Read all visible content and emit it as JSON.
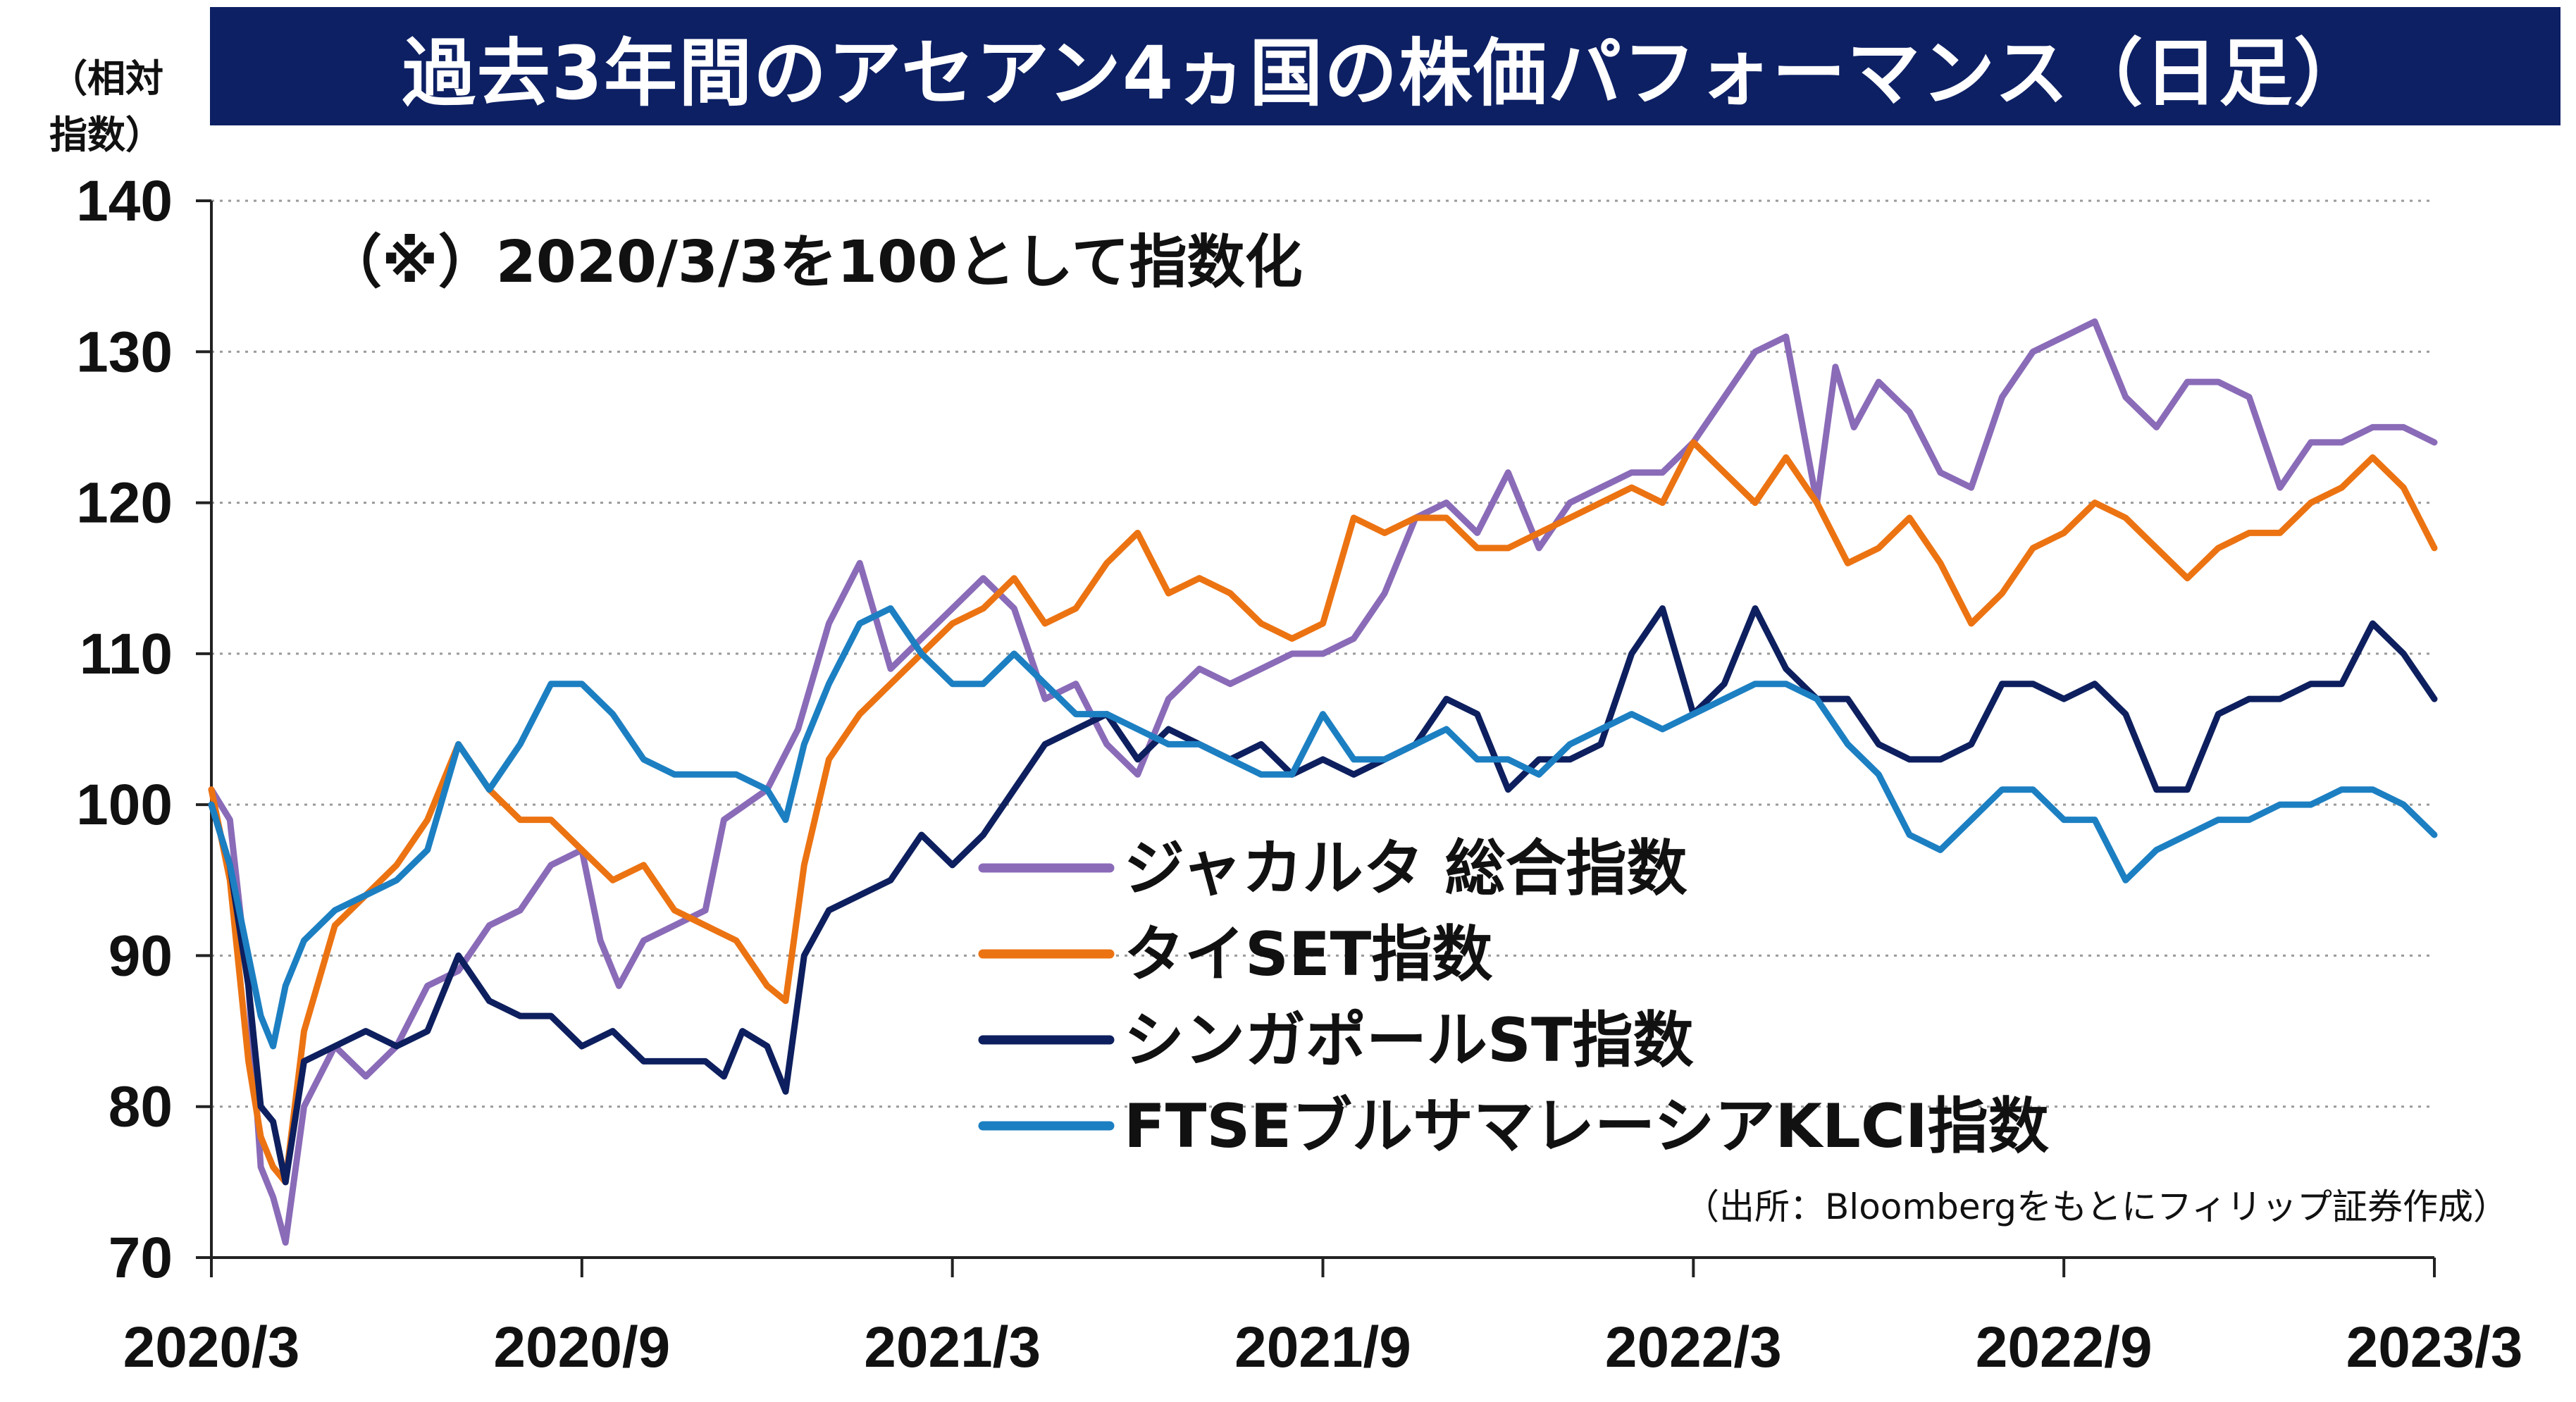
{
  "title": "過去3年間のアセアン4ヵ国の株価パフォーマンス（日足）",
  "unit_label": "（相対指数）",
  "note": "（※）2020/3/3を100として指数化",
  "source": "（出所：Bloombergをもとにフィリップ証券作成）",
  "colors": {
    "title_bg": "#0d2064",
    "jakarta": "#8a6bb8",
    "thai": "#ec7312",
    "singapore": "#0d1f5e",
    "malaysia": "#1c7fc2",
    "grid": "#9a9a9a"
  },
  "chart_data": {
    "type": "line",
    "title": "過去3年間のアセアン4ヵ国の株価パフォーマンス（日足）",
    "ylabel": "（相対指数）",
    "xlabel": "",
    "ylim": [
      70,
      140
    ],
    "yticks": [
      "140",
      "130",
      "120",
      "110",
      "100",
      "90",
      "80",
      "70"
    ],
    "xticks": [
      "2020/3",
      "2020/9",
      "2021/3",
      "2021/9",
      "2022/3",
      "2022/9",
      "2023/3"
    ],
    "grid": "horizontal dotted",
    "legend_placement": "center-right",
    "x_format": "months from 2020/3",
    "series": [
      {
        "name": "ジャカルタ 総合指数",
        "color": "#8a6bb8",
        "points": [
          [
            0,
            101
          ],
          [
            0.3,
            99
          ],
          [
            0.6,
            88
          ],
          [
            0.8,
            76
          ],
          [
            1.0,
            74
          ],
          [
            1.2,
            71
          ],
          [
            1.5,
            80
          ],
          [
            2.0,
            84
          ],
          [
            2.5,
            82
          ],
          [
            3.0,
            84
          ],
          [
            3.5,
            88
          ],
          [
            4.0,
            89
          ],
          [
            4.5,
            92
          ],
          [
            5.0,
            93
          ],
          [
            5.5,
            96
          ],
          [
            6.0,
            97
          ],
          [
            6.3,
            91
          ],
          [
            6.6,
            88
          ],
          [
            7.0,
            91
          ],
          [
            7.5,
            92
          ],
          [
            8.0,
            93
          ],
          [
            8.3,
            99
          ],
          [
            9.0,
            101
          ],
          [
            9.5,
            105
          ],
          [
            10.0,
            112
          ],
          [
            10.5,
            116
          ],
          [
            11.0,
            109
          ],
          [
            11.5,
            111
          ],
          [
            12.0,
            113
          ],
          [
            12.5,
            115
          ],
          [
            13.0,
            113
          ],
          [
            13.5,
            107
          ],
          [
            14.0,
            108
          ],
          [
            14.5,
            104
          ],
          [
            15.0,
            102
          ],
          [
            15.5,
            107
          ],
          [
            16.0,
            109
          ],
          [
            16.5,
            108
          ],
          [
            17.0,
            109
          ],
          [
            17.5,
            110
          ],
          [
            18.0,
            110
          ],
          [
            18.5,
            111
          ],
          [
            19.0,
            114
          ],
          [
            19.5,
            119
          ],
          [
            20.0,
            120
          ],
          [
            20.5,
            118
          ],
          [
            21.0,
            122
          ],
          [
            21.5,
            117
          ],
          [
            22.0,
            120
          ],
          [
            22.5,
            121
          ],
          [
            23.0,
            122
          ],
          [
            23.5,
            122
          ],
          [
            24.0,
            124
          ],
          [
            24.5,
            127
          ],
          [
            25.0,
            130
          ],
          [
            25.5,
            131
          ],
          [
            26.0,
            120
          ],
          [
            26.3,
            129
          ],
          [
            26.6,
            125
          ],
          [
            27.0,
            128
          ],
          [
            27.5,
            126
          ],
          [
            28.0,
            122
          ],
          [
            28.5,
            121
          ],
          [
            29.0,
            127
          ],
          [
            29.5,
            130
          ],
          [
            30.0,
            131
          ],
          [
            30.5,
            132
          ],
          [
            31.0,
            127
          ],
          [
            31.5,
            125
          ],
          [
            32.0,
            128
          ],
          [
            32.5,
            128
          ],
          [
            33.0,
            127
          ],
          [
            33.5,
            121
          ],
          [
            34.0,
            124
          ],
          [
            34.5,
            124
          ],
          [
            35.0,
            125
          ],
          [
            35.5,
            125
          ],
          [
            36.0,
            124
          ]
        ]
      },
      {
        "name": "タイSET指数",
        "color": "#ec7312",
        "points": [
          [
            0,
            101
          ],
          [
            0.3,
            95
          ],
          [
            0.6,
            83
          ],
          [
            0.8,
            78
          ],
          [
            1.0,
            76
          ],
          [
            1.2,
            75
          ],
          [
            1.5,
            85
          ],
          [
            2.0,
            92
          ],
          [
            2.5,
            94
          ],
          [
            3.0,
            96
          ],
          [
            3.5,
            99
          ],
          [
            4.0,
            104
          ],
          [
            4.5,
            101
          ],
          [
            5.0,
            99
          ],
          [
            5.5,
            99
          ],
          [
            6.0,
            97
          ],
          [
            6.5,
            95
          ],
          [
            7.0,
            96
          ],
          [
            7.5,
            93
          ],
          [
            8.0,
            92
          ],
          [
            8.5,
            91
          ],
          [
            9.0,
            88
          ],
          [
            9.3,
            87
          ],
          [
            9.6,
            96
          ],
          [
            10.0,
            103
          ],
          [
            10.5,
            106
          ],
          [
            11.0,
            108
          ],
          [
            11.5,
            110
          ],
          [
            12.0,
            112
          ],
          [
            12.5,
            113
          ],
          [
            13.0,
            115
          ],
          [
            13.5,
            112
          ],
          [
            14.0,
            113
          ],
          [
            14.5,
            116
          ],
          [
            15.0,
            118
          ],
          [
            15.5,
            114
          ],
          [
            16.0,
            115
          ],
          [
            16.5,
            114
          ],
          [
            17.0,
            112
          ],
          [
            17.5,
            111
          ],
          [
            18.0,
            112
          ],
          [
            18.5,
            119
          ],
          [
            19.0,
            118
          ],
          [
            19.5,
            119
          ],
          [
            20.0,
            119
          ],
          [
            20.5,
            117
          ],
          [
            21.0,
            117
          ],
          [
            21.5,
            118
          ],
          [
            22.0,
            119
          ],
          [
            22.5,
            120
          ],
          [
            23.0,
            121
          ],
          [
            23.5,
            120
          ],
          [
            24.0,
            124
          ],
          [
            24.5,
            122
          ],
          [
            25.0,
            120
          ],
          [
            25.5,
            123
          ],
          [
            26.0,
            120
          ],
          [
            26.5,
            116
          ],
          [
            27.0,
            117
          ],
          [
            27.5,
            119
          ],
          [
            28.0,
            116
          ],
          [
            28.5,
            112
          ],
          [
            29.0,
            114
          ],
          [
            29.5,
            117
          ],
          [
            30.0,
            118
          ],
          [
            30.5,
            120
          ],
          [
            31.0,
            119
          ],
          [
            31.5,
            117
          ],
          [
            32.0,
            115
          ],
          [
            32.5,
            117
          ],
          [
            33.0,
            118
          ],
          [
            33.5,
            118
          ],
          [
            34.0,
            120
          ],
          [
            34.5,
            121
          ],
          [
            35.0,
            123
          ],
          [
            35.5,
            121
          ],
          [
            36.0,
            117
          ]
        ]
      },
      {
        "name": "シンガポールST指数",
        "color": "#0d1f5e",
        "points": [
          [
            0,
            100
          ],
          [
            0.3,
            96
          ],
          [
            0.6,
            88
          ],
          [
            0.8,
            80
          ],
          [
            1.0,
            79
          ],
          [
            1.2,
            75
          ],
          [
            1.5,
            83
          ],
          [
            2.0,
            84
          ],
          [
            2.5,
            85
          ],
          [
            3.0,
            84
          ],
          [
            3.5,
            85
          ],
          [
            4.0,
            90
          ],
          [
            4.5,
            87
          ],
          [
            5.0,
            86
          ],
          [
            5.5,
            86
          ],
          [
            6.0,
            84
          ],
          [
            6.5,
            85
          ],
          [
            7.0,
            83
          ],
          [
            7.5,
            83
          ],
          [
            8.0,
            83
          ],
          [
            8.3,
            82
          ],
          [
            8.6,
            85
          ],
          [
            9.0,
            84
          ],
          [
            9.3,
            81
          ],
          [
            9.6,
            90
          ],
          [
            10.0,
            93
          ],
          [
            10.5,
            94
          ],
          [
            11.0,
            95
          ],
          [
            11.5,
            98
          ],
          [
            12.0,
            96
          ],
          [
            12.5,
            98
          ],
          [
            13.0,
            101
          ],
          [
            13.5,
            104
          ],
          [
            14.0,
            105
          ],
          [
            14.5,
            106
          ],
          [
            15.0,
            103
          ],
          [
            15.5,
            105
          ],
          [
            16.0,
            104
          ],
          [
            16.5,
            103
          ],
          [
            17.0,
            104
          ],
          [
            17.5,
            102
          ],
          [
            18.0,
            103
          ],
          [
            18.5,
            102
          ],
          [
            19.0,
            103
          ],
          [
            19.5,
            104
          ],
          [
            20.0,
            107
          ],
          [
            20.5,
            106
          ],
          [
            21.0,
            101
          ],
          [
            21.5,
            103
          ],
          [
            22.0,
            103
          ],
          [
            22.5,
            104
          ],
          [
            23.0,
            110
          ],
          [
            23.5,
            113
          ],
          [
            24.0,
            106
          ],
          [
            24.5,
            108
          ],
          [
            25.0,
            113
          ],
          [
            25.5,
            109
          ],
          [
            26.0,
            107
          ],
          [
            26.5,
            107
          ],
          [
            27.0,
            104
          ],
          [
            27.5,
            103
          ],
          [
            28.0,
            103
          ],
          [
            28.5,
            104
          ],
          [
            29.0,
            108
          ],
          [
            29.5,
            108
          ],
          [
            30.0,
            107
          ],
          [
            30.5,
            108
          ],
          [
            31.0,
            106
          ],
          [
            31.5,
            101
          ],
          [
            32.0,
            101
          ],
          [
            32.5,
            106
          ],
          [
            33.0,
            107
          ],
          [
            33.5,
            107
          ],
          [
            34.0,
            108
          ],
          [
            34.5,
            108
          ],
          [
            35.0,
            112
          ],
          [
            35.5,
            110
          ],
          [
            36.0,
            107
          ]
        ]
      },
      {
        "name": "FTSEブルサマレーシアKLCI指数",
        "color": "#1c7fc2",
        "points": [
          [
            0,
            100
          ],
          [
            0.3,
            96
          ],
          [
            0.6,
            90
          ],
          [
            0.8,
            86
          ],
          [
            1.0,
            84
          ],
          [
            1.2,
            88
          ],
          [
            1.5,
            91
          ],
          [
            2.0,
            93
          ],
          [
            2.5,
            94
          ],
          [
            3.0,
            95
          ],
          [
            3.5,
            97
          ],
          [
            4.0,
            104
          ],
          [
            4.5,
            101
          ],
          [
            5.0,
            104
          ],
          [
            5.5,
            108
          ],
          [
            6.0,
            108
          ],
          [
            6.5,
            106
          ],
          [
            7.0,
            103
          ],
          [
            7.5,
            102
          ],
          [
            8.0,
            102
          ],
          [
            8.5,
            102
          ],
          [
            9.0,
            101
          ],
          [
            9.3,
            99
          ],
          [
            9.6,
            104
          ],
          [
            10.0,
            108
          ],
          [
            10.5,
            112
          ],
          [
            11.0,
            113
          ],
          [
            11.5,
            110
          ],
          [
            12.0,
            108
          ],
          [
            12.5,
            108
          ],
          [
            13.0,
            110
          ],
          [
            13.5,
            108
          ],
          [
            14.0,
            106
          ],
          [
            14.5,
            106
          ],
          [
            15.0,
            105
          ],
          [
            15.5,
            104
          ],
          [
            16.0,
            104
          ],
          [
            16.5,
            103
          ],
          [
            17.0,
            102
          ],
          [
            17.5,
            102
          ],
          [
            18.0,
            106
          ],
          [
            18.5,
            103
          ],
          [
            19.0,
            103
          ],
          [
            19.5,
            104
          ],
          [
            20.0,
            105
          ],
          [
            20.5,
            103
          ],
          [
            21.0,
            103
          ],
          [
            21.5,
            102
          ],
          [
            22.0,
            104
          ],
          [
            22.5,
            105
          ],
          [
            23.0,
            106
          ],
          [
            23.5,
            105
          ],
          [
            24.0,
            106
          ],
          [
            24.5,
            107
          ],
          [
            25.0,
            108
          ],
          [
            25.5,
            108
          ],
          [
            26.0,
            107
          ],
          [
            26.5,
            104
          ],
          [
            27.0,
            102
          ],
          [
            27.5,
            98
          ],
          [
            28.0,
            97
          ],
          [
            28.5,
            99
          ],
          [
            29.0,
            101
          ],
          [
            29.5,
            101
          ],
          [
            30.0,
            99
          ],
          [
            30.5,
            99
          ],
          [
            31.0,
            95
          ],
          [
            31.5,
            97
          ],
          [
            32.0,
            98
          ],
          [
            32.5,
            99
          ],
          [
            33.0,
            99
          ],
          [
            33.5,
            100
          ],
          [
            34.0,
            100
          ],
          [
            34.5,
            101
          ],
          [
            35.0,
            101
          ],
          [
            35.5,
            100
          ],
          [
            36.0,
            98
          ]
        ]
      }
    ]
  }
}
